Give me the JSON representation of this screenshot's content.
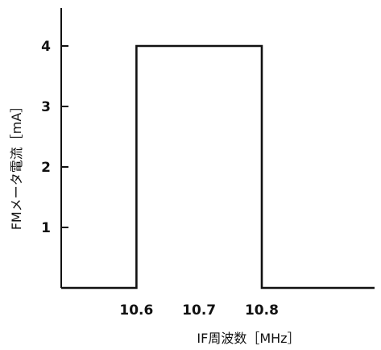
{
  "chart_data": {
    "type": "line",
    "title": "",
    "xlabel": "IF周波数［MHz］",
    "ylabel": "FMメータ電流［mA］",
    "xlim": [
      10.48,
      10.98
    ],
    "ylim": [
      0,
      4.6
    ],
    "xticks": [
      10.6,
      10.7,
      10.8
    ],
    "xtick_labels": [
      "10.6",
      "10.7",
      "10.8"
    ],
    "yticks": [
      1,
      2,
      3,
      4
    ],
    "ytick_labels": [
      "1",
      "2",
      "3",
      "4"
    ],
    "grid": false,
    "legend": "none",
    "series": [
      {
        "x": [
          10.48,
          10.6,
          10.6,
          10.8,
          10.8,
          10.98
        ],
        "y": [
          0,
          0,
          4,
          4,
          0,
          0
        ]
      }
    ]
  }
}
